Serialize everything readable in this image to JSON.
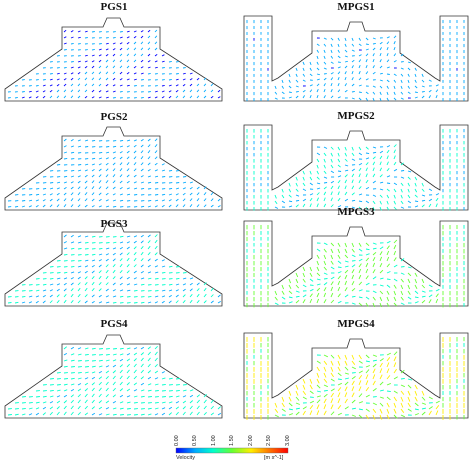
{
  "panels": {
    "pgs1": "PGS1",
    "pgs2": "PGS2",
    "pgs3": "PGS3",
    "pgs4": "PGS4",
    "mpgs1": "MPGS1",
    "mpgs2": "MPGS2",
    "mpgs3": "MPGS3",
    "mpgs4": "MPGS4"
  },
  "colorbar": {
    "label": "Velocity",
    "unit": "[m s^-1]",
    "ticks": [
      "0.00",
      "0.50",
      "1.00",
      "1.50",
      "2.00",
      "2.50",
      "3.00"
    ],
    "colors": [
      "#0000ff",
      "#00aaff",
      "#00ffcc",
      "#66ff33",
      "#ffee00",
      "#ff7700",
      "#ff0000"
    ]
  },
  "levels": {
    "pgs1": 0.25,
    "pgs2": 0.55,
    "pgs3": 0.75,
    "pgs4": 1.0,
    "mpgs1": 0.4,
    "mpgs2": 0.8,
    "mpgs3": 1.3,
    "mpgs4": 1.7
  }
}
